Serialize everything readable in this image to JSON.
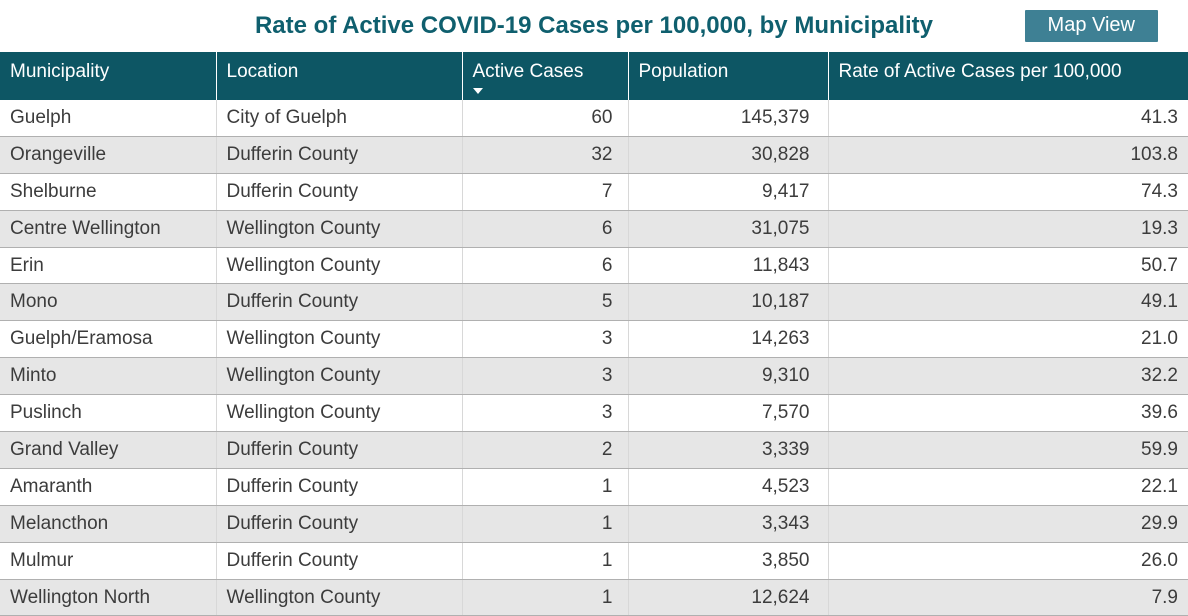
{
  "title": "Rate of Active COVID-19 Cases per 100,000, by Municipality",
  "map_view_button": "Map View",
  "colors": {
    "title_text": "#0f5f6e",
    "button_bg": "#3e8094",
    "header_bg": "#0d5664",
    "header_text": "#ffffff",
    "row_alt_bg": "#e6e6e6",
    "row_border": "#b0b0b0",
    "body_text": "#3c3c3c"
  },
  "sort": {
    "column": "Active Cases",
    "direction": "descending",
    "icon": "sort-descending-triangle"
  },
  "table": {
    "columns": [
      {
        "label": "Municipality",
        "align": "left"
      },
      {
        "label": "Location",
        "align": "left"
      },
      {
        "label": "Active Cases",
        "align": "right",
        "sorted": true
      },
      {
        "label": "Population",
        "align": "right"
      },
      {
        "label": "Rate of Active Cases per 100,000",
        "align": "right"
      }
    ],
    "rows": [
      [
        "Guelph",
        "City of Guelph",
        "60",
        "145,379",
        "41.3"
      ],
      [
        "Orangeville",
        "Dufferin County",
        "32",
        "30,828",
        "103.8"
      ],
      [
        "Shelburne",
        "Dufferin County",
        "7",
        "9,417",
        "74.3"
      ],
      [
        "Centre Wellington",
        "Wellington County",
        "6",
        "31,075",
        "19.3"
      ],
      [
        "Erin",
        "Wellington County",
        "6",
        "11,843",
        "50.7"
      ],
      [
        "Mono",
        "Dufferin County",
        "5",
        "10,187",
        "49.1"
      ],
      [
        "Guelph/Eramosa",
        "Wellington County",
        "3",
        "14,263",
        "21.0"
      ],
      [
        "Minto",
        "Wellington County",
        "3",
        "9,310",
        "32.2"
      ],
      [
        "Puslinch",
        "Wellington County",
        "3",
        "7,570",
        "39.6"
      ],
      [
        "Grand Valley",
        "Dufferin County",
        "2",
        "3,339",
        "59.9"
      ],
      [
        "Amaranth",
        "Dufferin County",
        "1",
        "4,523",
        "22.1"
      ],
      [
        "Melancthon",
        "Dufferin County",
        "1",
        "3,343",
        "29.9"
      ],
      [
        "Mulmur",
        "Dufferin County",
        "1",
        "3,850",
        "26.0"
      ],
      [
        "Wellington North",
        "Wellington County",
        "1",
        "12,624",
        "7.9"
      ]
    ]
  }
}
